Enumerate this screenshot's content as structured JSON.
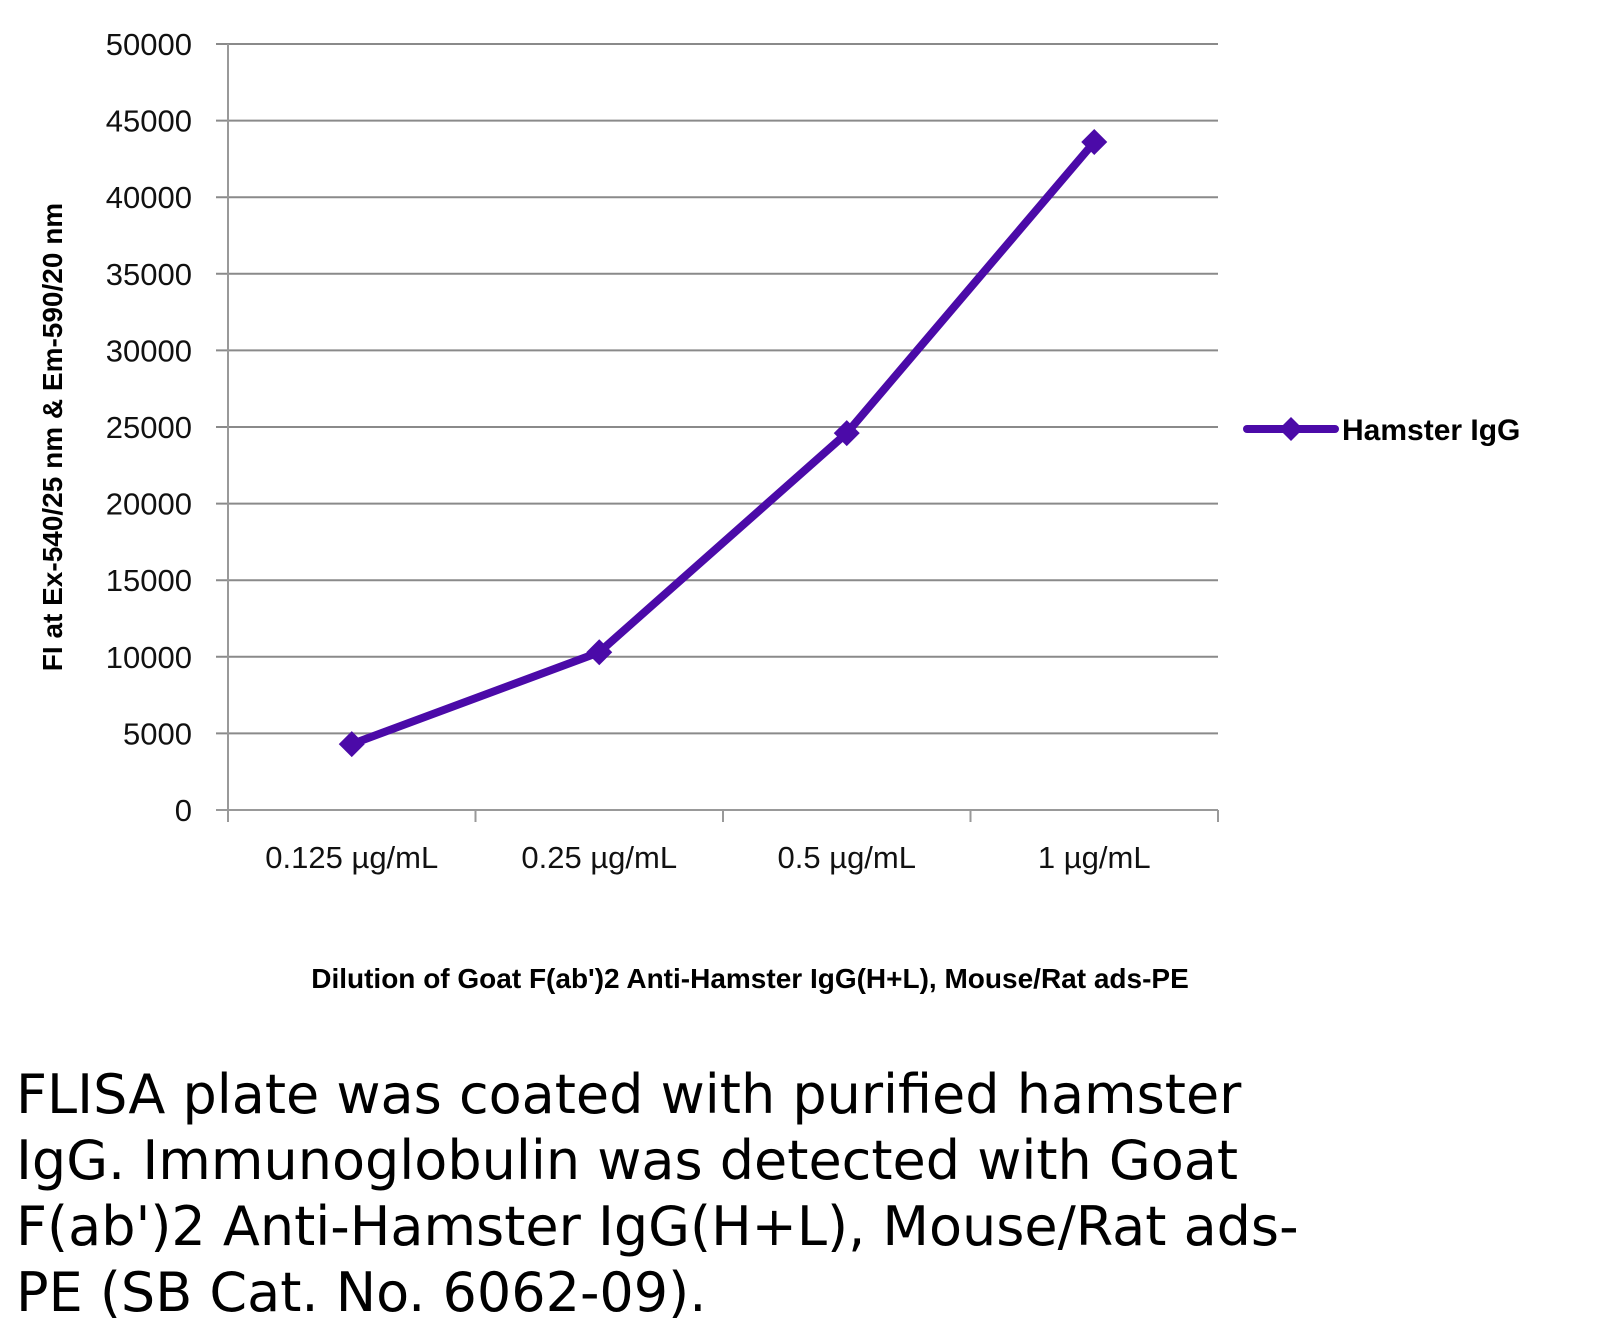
{
  "chart_data": {
    "type": "line",
    "categories": [
      "0.125 µg/mL",
      "0.25 µg/mL",
      "0.5 µg/mL",
      "1 µg/mL"
    ],
    "series": [
      {
        "name": "Hamster IgG",
        "values": [
          4300,
          10300,
          24600,
          43600
        ],
        "color": "#4B0AA8",
        "marker": "diamond"
      }
    ],
    "xlabel": "Dilution of Goat F(ab')2 Anti-Hamster IgG(H+L), Mouse/Rat ads-PE",
    "ylabel": "FI at Ex-540/25 nm & Em-590/20 nm",
    "ylim": [
      0,
      50000
    ],
    "yticks": [
      0,
      5000,
      10000,
      15000,
      20000,
      25000,
      30000,
      35000,
      40000,
      45000,
      50000
    ],
    "grid": true,
    "legend_position": "right"
  },
  "caption": "FLISA plate was coated with purified hamster\nIgG.  Immunoglobulin was detected with Goat\nF(ab')2 Anti-Hamster IgG(H+L), Mouse/Rat ads-\nPE (SB Cat. No. 6062-09)."
}
